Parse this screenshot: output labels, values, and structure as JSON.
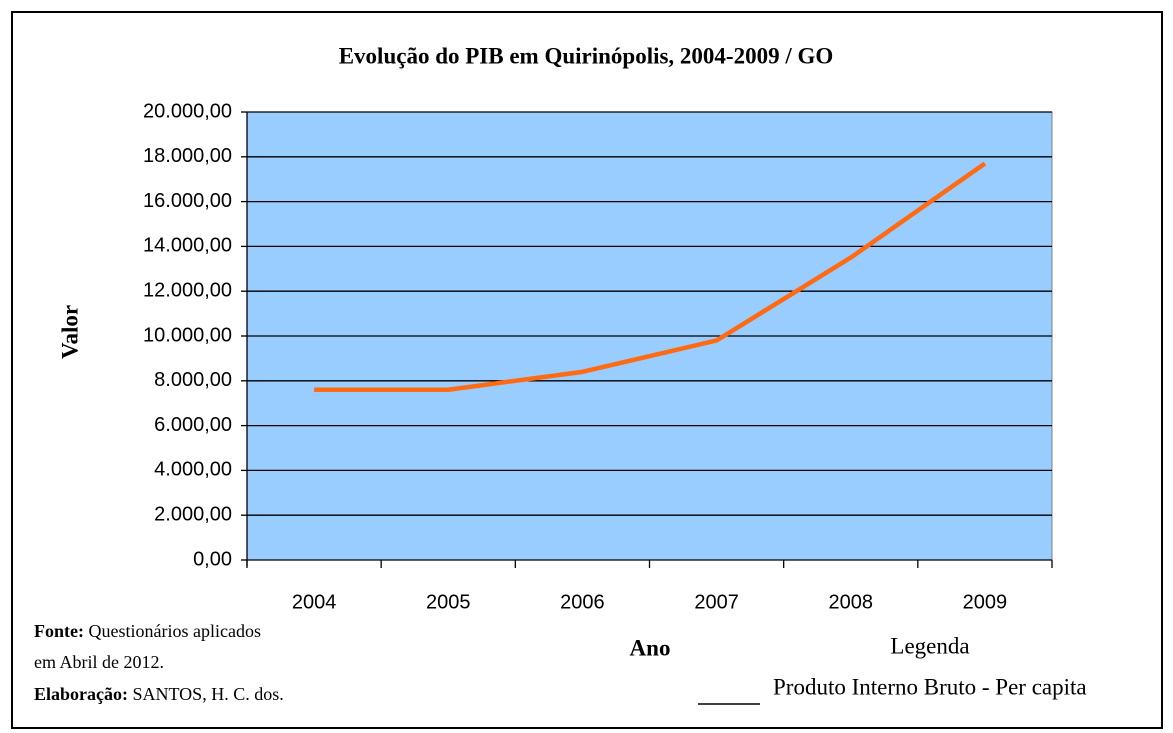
{
  "chart_data": {
    "type": "line",
    "title": "Evolução do PIB em Quirinópolis, 2004-2009 / GO",
    "y_label": "Valor",
    "x_label": "Ano",
    "legend_title": "Legenda",
    "categories": [
      "2004",
      "2005",
      "2006",
      "2007",
      "2008",
      "2009"
    ],
    "series": [
      {
        "name": "Produto Interno Bruto - Per capita",
        "color": "#ff6a13",
        "values": [
          7600,
          7600,
          8400,
          9800,
          13500,
          17700
        ]
      }
    ],
    "ylim": [
      0,
      20000
    ],
    "yticks": [
      {
        "value": 0,
        "label": "0,00"
      },
      {
        "value": 2000,
        "label": "2.000,00"
      },
      {
        "value": 4000,
        "label": "4.000,00"
      },
      {
        "value": 6000,
        "label": "6.000,00"
      },
      {
        "value": 8000,
        "label": "8.000,00"
      },
      {
        "value": 10000,
        "label": "10.000,00"
      },
      {
        "value": 12000,
        "label": "12.000,00"
      },
      {
        "value": 14000,
        "label": "14.000,00"
      },
      {
        "value": 16000,
        "label": "16.000,00"
      },
      {
        "value": 18000,
        "label": "18.000,00"
      },
      {
        "value": 20000,
        "label": "20.000,00"
      }
    ],
    "grid": true,
    "plot_background": "#99ccff",
    "notes": {
      "source_label": "Fonte:",
      "source_text": " Questionários aplicados",
      "source_text_2": "em Abril de 2012.",
      "credit_label": "Elaboração:",
      "credit_text": " SANTOS,  H. C. dos."
    }
  }
}
